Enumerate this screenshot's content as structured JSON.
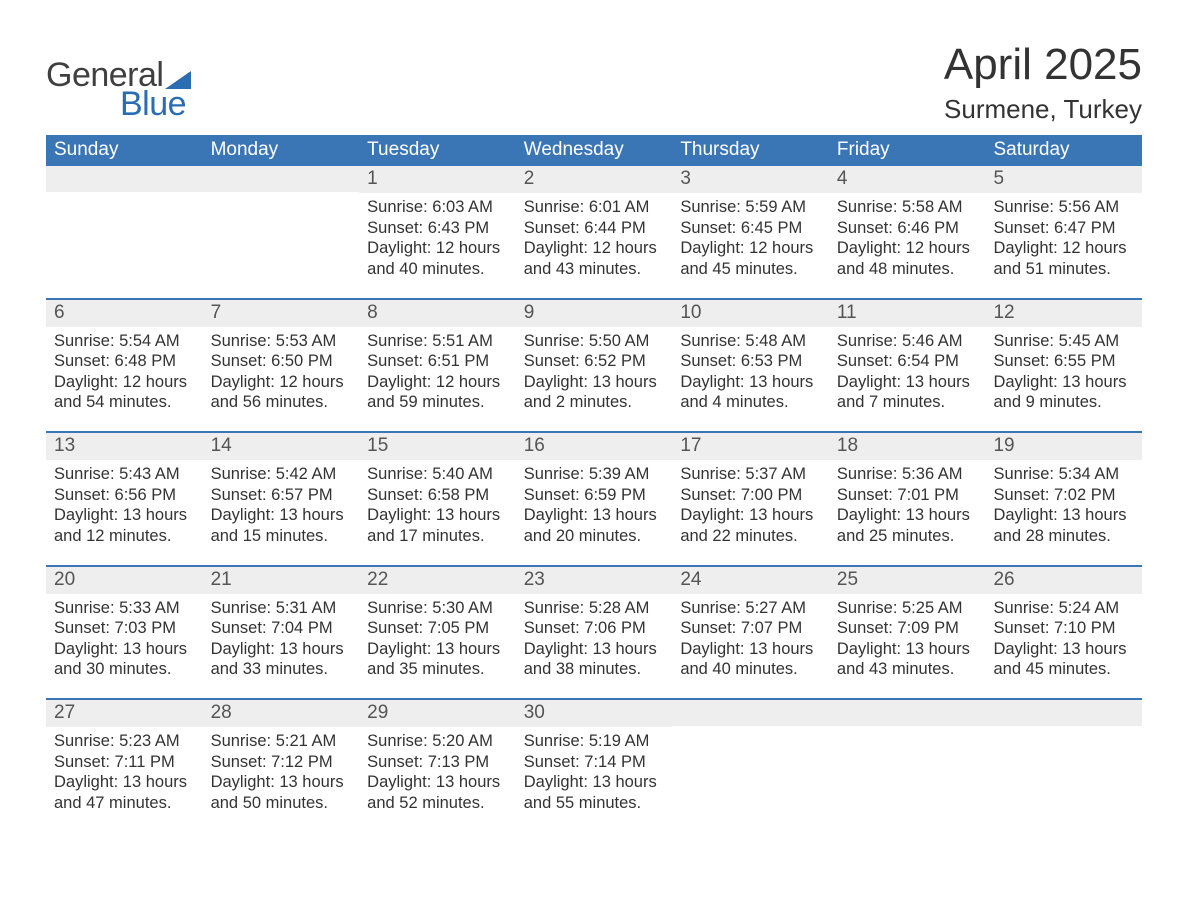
{
  "brand": {
    "word1": "General",
    "word2": "Blue"
  },
  "title": {
    "month": "April 2025",
    "location": "Surmene, Turkey"
  },
  "style": {
    "header_bg": "#3a76b6",
    "header_text": "#ffffff",
    "daynum_bg": "#eeeeee",
    "week_border": "#3a76b6",
    "body_text": "#333333",
    "title_fontsize_pt": 33,
    "location_fontsize_pt": 20,
    "dow_fontsize_pt": 14,
    "cell_fontsize_pt": 12
  },
  "calendar": {
    "headers": [
      "Sunday",
      "Monday",
      "Tuesday",
      "Wednesday",
      "Thursday",
      "Friday",
      "Saturday"
    ],
    "weeks": [
      [
        {
          "n": "",
          "sunrise": "",
          "sunset": "",
          "daylight": ""
        },
        {
          "n": "",
          "sunrise": "",
          "sunset": "",
          "daylight": ""
        },
        {
          "n": "1",
          "sunrise": "Sunrise: 6:03 AM",
          "sunset": "Sunset: 6:43 PM",
          "daylight": "Daylight: 12 hours and 40 minutes."
        },
        {
          "n": "2",
          "sunrise": "Sunrise: 6:01 AM",
          "sunset": "Sunset: 6:44 PM",
          "daylight": "Daylight: 12 hours and 43 minutes."
        },
        {
          "n": "3",
          "sunrise": "Sunrise: 5:59 AM",
          "sunset": "Sunset: 6:45 PM",
          "daylight": "Daylight: 12 hours and 45 minutes."
        },
        {
          "n": "4",
          "sunrise": "Sunrise: 5:58 AM",
          "sunset": "Sunset: 6:46 PM",
          "daylight": "Daylight: 12 hours and 48 minutes."
        },
        {
          "n": "5",
          "sunrise": "Sunrise: 5:56 AM",
          "sunset": "Sunset: 6:47 PM",
          "daylight": "Daylight: 12 hours and 51 minutes."
        }
      ],
      [
        {
          "n": "6",
          "sunrise": "Sunrise: 5:54 AM",
          "sunset": "Sunset: 6:48 PM",
          "daylight": "Daylight: 12 hours and 54 minutes."
        },
        {
          "n": "7",
          "sunrise": "Sunrise: 5:53 AM",
          "sunset": "Sunset: 6:50 PM",
          "daylight": "Daylight: 12 hours and 56 minutes."
        },
        {
          "n": "8",
          "sunrise": "Sunrise: 5:51 AM",
          "sunset": "Sunset: 6:51 PM",
          "daylight": "Daylight: 12 hours and 59 minutes."
        },
        {
          "n": "9",
          "sunrise": "Sunrise: 5:50 AM",
          "sunset": "Sunset: 6:52 PM",
          "daylight": "Daylight: 13 hours and 2 minutes."
        },
        {
          "n": "10",
          "sunrise": "Sunrise: 5:48 AM",
          "sunset": "Sunset: 6:53 PM",
          "daylight": "Daylight: 13 hours and 4 minutes."
        },
        {
          "n": "11",
          "sunrise": "Sunrise: 5:46 AM",
          "sunset": "Sunset: 6:54 PM",
          "daylight": "Daylight: 13 hours and 7 minutes."
        },
        {
          "n": "12",
          "sunrise": "Sunrise: 5:45 AM",
          "sunset": "Sunset: 6:55 PM",
          "daylight": "Daylight: 13 hours and 9 minutes."
        }
      ],
      [
        {
          "n": "13",
          "sunrise": "Sunrise: 5:43 AM",
          "sunset": "Sunset: 6:56 PM",
          "daylight": "Daylight: 13 hours and 12 minutes."
        },
        {
          "n": "14",
          "sunrise": "Sunrise: 5:42 AM",
          "sunset": "Sunset: 6:57 PM",
          "daylight": "Daylight: 13 hours and 15 minutes."
        },
        {
          "n": "15",
          "sunrise": "Sunrise: 5:40 AM",
          "sunset": "Sunset: 6:58 PM",
          "daylight": "Daylight: 13 hours and 17 minutes."
        },
        {
          "n": "16",
          "sunrise": "Sunrise: 5:39 AM",
          "sunset": "Sunset: 6:59 PM",
          "daylight": "Daylight: 13 hours and 20 minutes."
        },
        {
          "n": "17",
          "sunrise": "Sunrise: 5:37 AM",
          "sunset": "Sunset: 7:00 PM",
          "daylight": "Daylight: 13 hours and 22 minutes."
        },
        {
          "n": "18",
          "sunrise": "Sunrise: 5:36 AM",
          "sunset": "Sunset: 7:01 PM",
          "daylight": "Daylight: 13 hours and 25 minutes."
        },
        {
          "n": "19",
          "sunrise": "Sunrise: 5:34 AM",
          "sunset": "Sunset: 7:02 PM",
          "daylight": "Daylight: 13 hours and 28 minutes."
        }
      ],
      [
        {
          "n": "20",
          "sunrise": "Sunrise: 5:33 AM",
          "sunset": "Sunset: 7:03 PM",
          "daylight": "Daylight: 13 hours and 30 minutes."
        },
        {
          "n": "21",
          "sunrise": "Sunrise: 5:31 AM",
          "sunset": "Sunset: 7:04 PM",
          "daylight": "Daylight: 13 hours and 33 minutes."
        },
        {
          "n": "22",
          "sunrise": "Sunrise: 5:30 AM",
          "sunset": "Sunset: 7:05 PM",
          "daylight": "Daylight: 13 hours and 35 minutes."
        },
        {
          "n": "23",
          "sunrise": "Sunrise: 5:28 AM",
          "sunset": "Sunset: 7:06 PM",
          "daylight": "Daylight: 13 hours and 38 minutes."
        },
        {
          "n": "24",
          "sunrise": "Sunrise: 5:27 AM",
          "sunset": "Sunset: 7:07 PM",
          "daylight": "Daylight: 13 hours and 40 minutes."
        },
        {
          "n": "25",
          "sunrise": "Sunrise: 5:25 AM",
          "sunset": "Sunset: 7:09 PM",
          "daylight": "Daylight: 13 hours and 43 minutes."
        },
        {
          "n": "26",
          "sunrise": "Sunrise: 5:24 AM",
          "sunset": "Sunset: 7:10 PM",
          "daylight": "Daylight: 13 hours and 45 minutes."
        }
      ],
      [
        {
          "n": "27",
          "sunrise": "Sunrise: 5:23 AM",
          "sunset": "Sunset: 7:11 PM",
          "daylight": "Daylight: 13 hours and 47 minutes."
        },
        {
          "n": "28",
          "sunrise": "Sunrise: 5:21 AM",
          "sunset": "Sunset: 7:12 PM",
          "daylight": "Daylight: 13 hours and 50 minutes."
        },
        {
          "n": "29",
          "sunrise": "Sunrise: 5:20 AM",
          "sunset": "Sunset: 7:13 PM",
          "daylight": "Daylight: 13 hours and 52 minutes."
        },
        {
          "n": "30",
          "sunrise": "Sunrise: 5:19 AM",
          "sunset": "Sunset: 7:14 PM",
          "daylight": "Daylight: 13 hours and 55 minutes."
        },
        {
          "n": "",
          "sunrise": "",
          "sunset": "",
          "daylight": ""
        },
        {
          "n": "",
          "sunrise": "",
          "sunset": "",
          "daylight": ""
        },
        {
          "n": "",
          "sunrise": "",
          "sunset": "",
          "daylight": ""
        }
      ]
    ]
  }
}
